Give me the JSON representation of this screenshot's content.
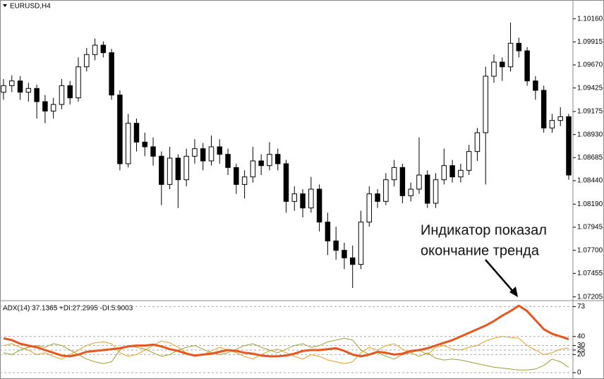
{
  "chart_data": [
    {
      "type": "candlestick",
      "title": "EURUSD,H4",
      "annotation": [
        "Индикатор показал",
        "окончание тренда"
      ],
      "up_color": "#ffffff",
      "down_color": "#000000",
      "outline_color": "#000000",
      "ylim": [
        1.0718,
        1.1036
      ],
      "yticks": [
        {
          "value": 1.1016,
          "label": "1.10160"
        },
        1.09915,
        {
          "value": 1.0967,
          "label": "1.09670"
        },
        1.09425,
        1.09175,
        {
          "value": 1.0893,
          "label": "1.08930"
        },
        1.08685,
        {
          "value": 1.0844,
          "label": "1.08440"
        },
        {
          "value": 1.0819,
          "label": "1.08190"
        },
        1.07945,
        {
          "value": 1.077,
          "label": "1.07700"
        },
        1.07455,
        1.07205
      ],
      "open": [
        1.0938,
        1.0945,
        1.095,
        1.0938,
        1.0942,
        1.0928,
        1.0918,
        1.0925,
        1.0945,
        1.0932,
        1.0965,
        1.0978,
        1.0988,
        1.098,
        1.0935,
        1.0862,
        1.0905,
        1.0885,
        1.088,
        1.087,
        1.084,
        1.0868,
        1.0845,
        1.087,
        1.0878,
        1.0865,
        1.088,
        1.0872,
        1.0858,
        1.084,
        1.0848,
        1.0865,
        1.086,
        1.0872,
        1.0862,
        1.0822,
        1.083,
        1.0815,
        1.0835,
        1.08,
        1.078,
        1.077,
        1.0762,
        1.0755,
        1.08,
        1.083,
        1.0822,
        1.0845,
        1.0858,
        1.0828,
        1.0835,
        1.085,
        1.082,
        1.0845,
        1.086,
        1.0848,
        1.0855,
        1.0875,
        1.0895,
        1.0955,
        1.097,
        1.0965,
        1.099,
        1.0982,
        1.095,
        1.094,
        1.09,
        1.0908,
        1.0912
      ],
      "high": [
        1.0952,
        1.0956,
        1.0955,
        1.0948,
        1.0946,
        1.0935,
        1.0932,
        1.0952,
        1.095,
        1.0975,
        1.0985,
        1.0995,
        1.0992,
        1.0984,
        1.094,
        1.0915,
        1.091,
        1.0895,
        1.089,
        1.0875,
        1.088,
        1.0872,
        1.0878,
        1.0888,
        1.0884,
        1.0892,
        1.0888,
        1.0878,
        1.0862,
        1.0855,
        1.088,
        1.0872,
        1.0885,
        1.0878,
        1.0866,
        1.0838,
        1.0835,
        1.0848,
        1.084,
        1.081,
        1.0795,
        1.0778,
        1.0775,
        1.0812,
        1.0838,
        1.0835,
        1.0852,
        1.0866,
        1.0862,
        1.0842,
        1.089,
        1.0855,
        1.0852,
        1.0878,
        1.0866,
        1.0862,
        1.0882,
        1.09,
        1.0965,
        1.0978,
        1.0975,
        1.1012,
        1.0996,
        1.0986,
        1.0955,
        1.0945,
        1.0915,
        1.0922,
        1.0915
      ],
      "low": [
        1.093,
        1.0938,
        1.093,
        1.0928,
        1.091,
        1.0905,
        1.091,
        1.092,
        1.0925,
        1.0928,
        1.096,
        1.0972,
        1.0975,
        1.093,
        1.0855,
        1.0858,
        1.0875,
        1.087,
        1.086,
        1.0818,
        1.0835,
        1.0815,
        1.0838,
        1.0862,
        1.0855,
        1.086,
        1.0862,
        1.085,
        1.083,
        1.0825,
        1.0842,
        1.085,
        1.0855,
        1.0855,
        1.081,
        1.0812,
        1.0805,
        1.081,
        1.079,
        1.0765,
        1.076,
        1.075,
        1.073,
        1.075,
        1.0795,
        1.0815,
        1.0818,
        1.0838,
        1.082,
        1.0822,
        1.083,
        1.0815,
        1.0815,
        1.084,
        1.0842,
        1.0842,
        1.085,
        1.0865,
        1.084,
        1.0948,
        1.095,
        1.096,
        1.0975,
        1.0945,
        1.093,
        1.0895,
        1.0895,
        1.0902,
        1.0845
      ],
      "close": [
        1.0945,
        1.095,
        1.0938,
        1.0942,
        1.0928,
        1.0918,
        1.0925,
        1.0945,
        1.0932,
        1.0965,
        1.0978,
        1.0988,
        1.098,
        1.0935,
        1.0862,
        1.0905,
        1.0885,
        1.088,
        1.087,
        1.084,
        1.0868,
        1.0845,
        1.087,
        1.0878,
        1.0865,
        1.088,
        1.0872,
        1.0858,
        1.084,
        1.0848,
        1.0865,
        1.086,
        1.0872,
        1.0862,
        1.0822,
        1.083,
        1.0815,
        1.0835,
        1.08,
        1.078,
        1.077,
        1.0762,
        1.0755,
        1.08,
        1.083,
        1.0822,
        1.0845,
        1.0858,
        1.0828,
        1.0835,
        1.085,
        1.082,
        1.0845,
        1.086,
        1.0848,
        1.0855,
        1.0875,
        1.0895,
        1.0955,
        1.097,
        1.0965,
        1.099,
        1.0982,
        1.095,
        1.094,
        1.09,
        1.0908,
        1.0912,
        1.085
      ]
    },
    {
      "type": "line",
      "title": "ADX(14) 37.1365 +DI:27.2995 -DI:5.9003",
      "ylim": [
        -7,
        78
      ],
      "yticks": [
        0,
        20,
        25,
        30,
        40,
        73
      ],
      "grid": true,
      "series": [
        {
          "name": "+DI",
          "color": "#e8a020",
          "width": 1,
          "values": [
            30,
            32,
            28,
            25,
            20,
            22,
            18,
            15,
            20,
            25,
            30,
            33,
            34,
            32,
            22,
            18,
            20,
            25,
            30,
            35,
            33,
            28,
            22,
            18,
            20,
            24,
            28,
            25,
            22,
            18,
            15,
            20,
            24,
            26,
            22,
            18,
            15,
            20,
            18,
            14,
            12,
            10,
            12,
            22,
            28,
            25,
            30,
            32,
            26,
            22,
            25,
            20,
            28,
            30,
            26,
            25,
            28,
            30,
            35,
            38,
            40,
            39,
            38,
            30,
            25,
            20,
            22,
            26,
            27.3
          ]
        },
        {
          "name": "-DI",
          "color": "#a0a030",
          "width": 1,
          "values": [
            22,
            20,
            25,
            28,
            30,
            28,
            32,
            30,
            25,
            20,
            15,
            12,
            10,
            12,
            25,
            30,
            28,
            26,
            22,
            18,
            20,
            25,
            28,
            30,
            26,
            22,
            20,
            22,
            26,
            30,
            32,
            28,
            25,
            22,
            26,
            30,
            32,
            28,
            30,
            34,
            36,
            38,
            36,
            25,
            20,
            22,
            18,
            15,
            20,
            22,
            18,
            22,
            16,
            14,
            15,
            14,
            12,
            10,
            8,
            6,
            5,
            4,
            3,
            3,
            4,
            8,
            15,
            12,
            5.9
          ]
        },
        {
          "name": "ADX",
          "color": "#e8561e",
          "width": 3,
          "values": [
            38,
            36,
            32,
            30,
            28,
            25,
            22,
            19,
            18,
            20,
            23,
            24,
            25,
            26,
            27,
            29,
            30,
            30,
            31,
            29,
            26,
            24,
            21,
            19,
            20,
            21,
            23,
            25,
            24,
            22,
            21,
            19,
            18,
            18,
            19,
            21,
            24,
            25,
            25,
            26,
            27,
            24,
            20,
            18,
            20,
            23,
            22,
            20,
            21,
            24,
            25,
            27,
            30,
            33,
            36,
            40,
            44,
            48,
            52,
            57,
            63,
            68,
            74,
            68,
            58,
            48,
            43,
            40,
            37
          ]
        }
      ]
    }
  ]
}
